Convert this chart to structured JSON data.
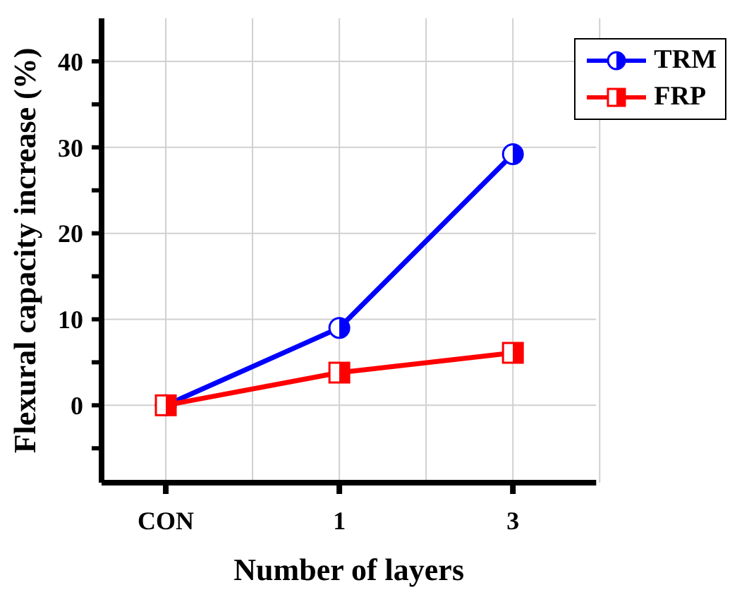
{
  "chart_data": {
    "type": "line",
    "xlabel": "Number of layers",
    "ylabel": "Flexural capacity increase (%)",
    "categories": [
      "CON",
      "1",
      "3"
    ],
    "series": [
      {
        "name": "TRM",
        "color": "#0000ff",
        "values": [
          0,
          9.0,
          29.2
        ],
        "marker": "circle"
      },
      {
        "name": "FRP",
        "color": "#ff0000",
        "values": [
          0,
          3.8,
          6.1
        ],
        "marker": "square"
      }
    ],
    "ylim": [
      -9,
      45
    ],
    "yticks": [
      {
        "value": -5,
        "label": null
      },
      0,
      {
        "value": 5,
        "label": null
      },
      10,
      {
        "value": 15,
        "label": null
      },
      20,
      {
        "value": 25,
        "label": null
      },
      30,
      {
        "value": 35,
        "label": null
      },
      40
    ],
    "grid": true,
    "legend": "top right",
    "line_style": "solid"
  }
}
